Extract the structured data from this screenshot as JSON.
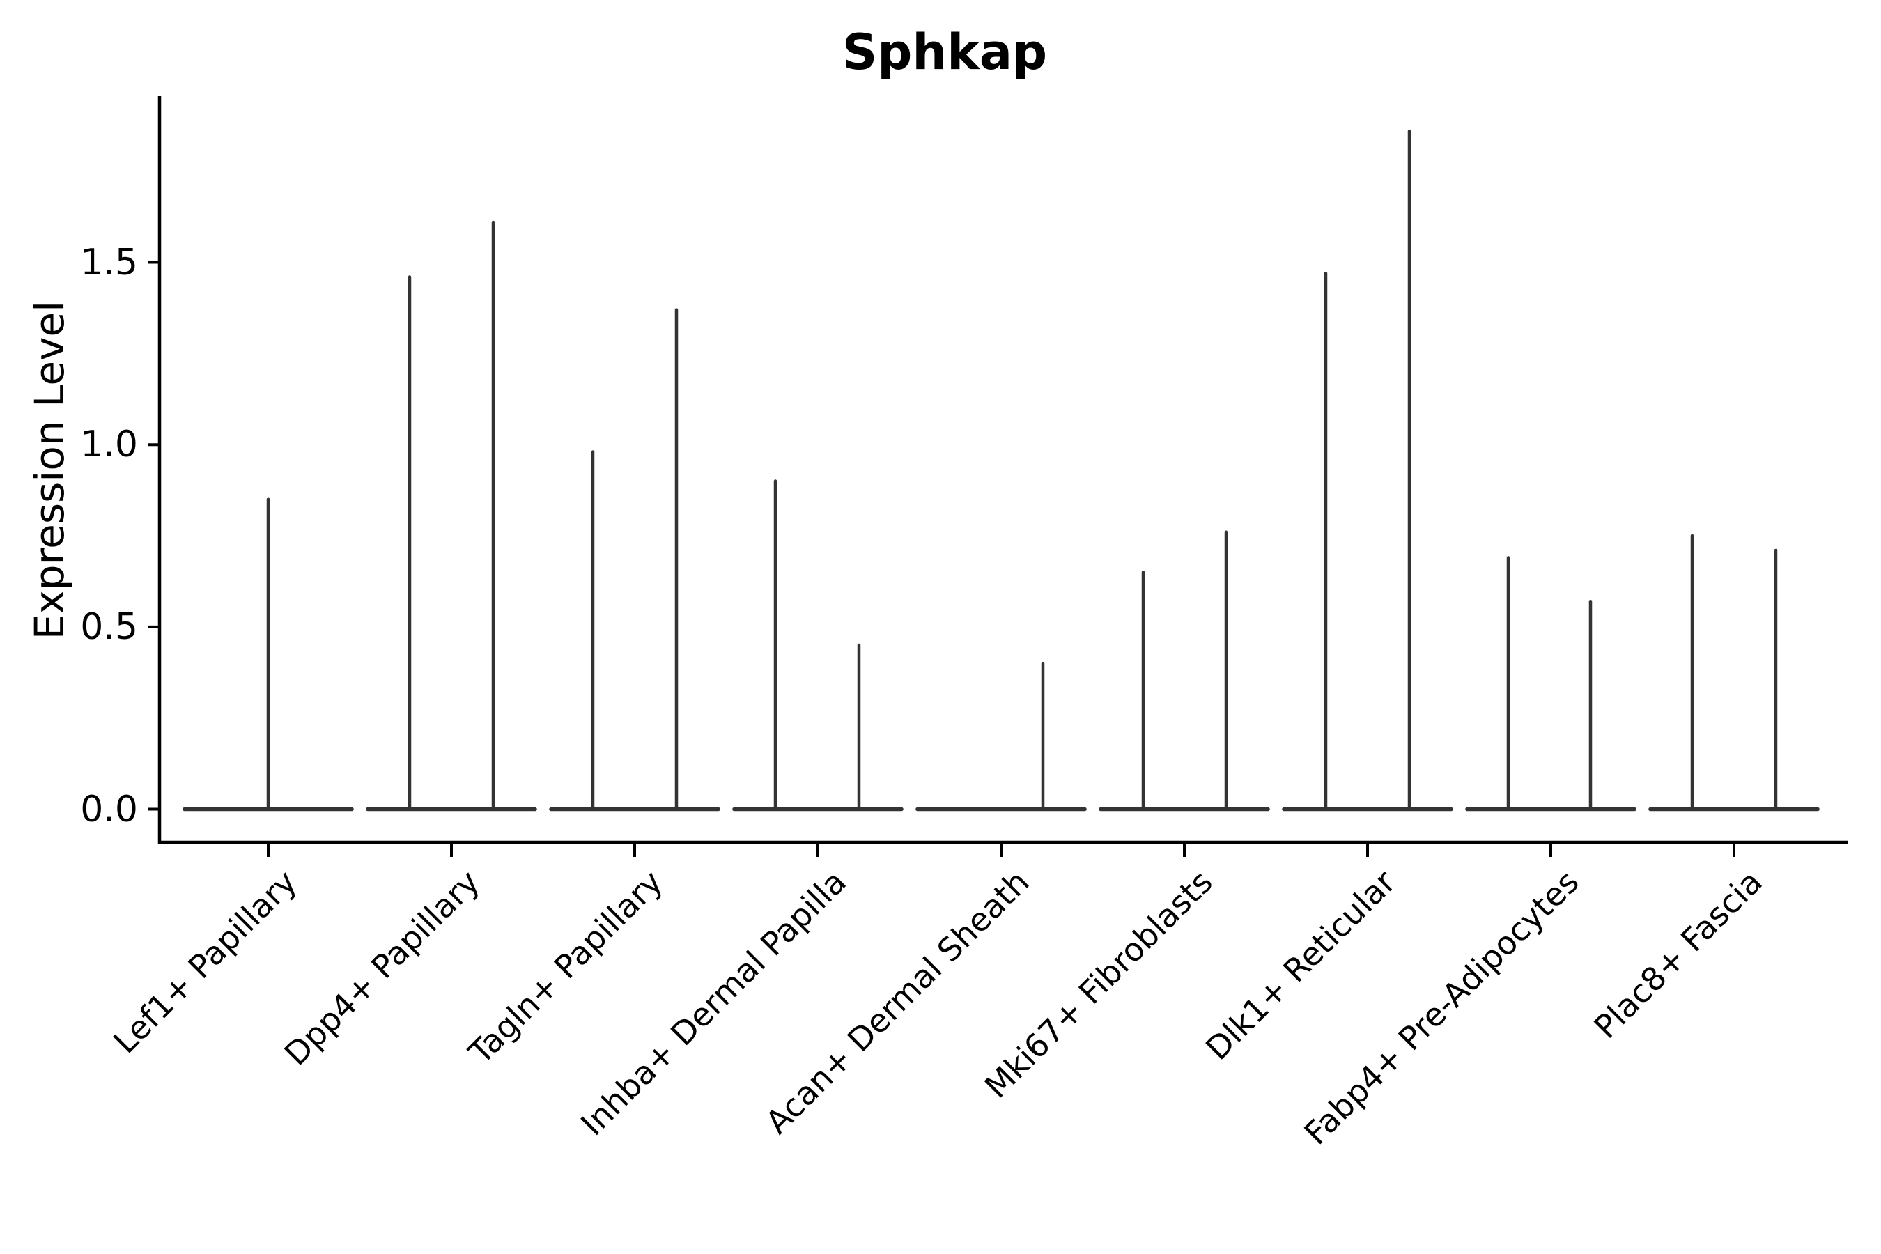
{
  "chart_data": {
    "type": "violin",
    "title": "Sphkap",
    "ylabel": "Expression Level",
    "xlabel": "",
    "legend": null,
    "grid": false,
    "ytick_labels": [
      "0.0",
      "0.5",
      "1.0",
      "1.5"
    ],
    "ytick_values": [
      0.0,
      0.5,
      1.0,
      1.5
    ],
    "ylim": [
      -0.09,
      1.95
    ],
    "violin_color": "#333333",
    "axis_color": "#000000",
    "categories": [
      "Lef1+ Papillary",
      "Dpp4+ Papillary",
      "Tagln+ Papillary",
      "Inhba+ Dermal Papilla",
      "Acan+ Dermal Sheath",
      "Mki67+ Fibroblasts",
      "Dlk1+ Reticular",
      "Fabp4+ Pre-Adipocytes",
      "Plac8+ Fascia"
    ],
    "violins": [
      {
        "label": "Lef1+ Papillary",
        "baseline_value": 0.0,
        "needles": [
          {
            "dx": 0,
            "value": 0.85
          }
        ]
      },
      {
        "label": "Dpp4+ Papillary",
        "baseline_value": 0.0,
        "needles": [
          {
            "dx": -60,
            "value": 1.46
          },
          {
            "dx": 60,
            "value": 1.61
          }
        ]
      },
      {
        "label": "Tagln+ Papillary",
        "baseline_value": 0.0,
        "needles": [
          {
            "dx": -60,
            "value": 0.98
          },
          {
            "dx": 60,
            "value": 1.37
          }
        ]
      },
      {
        "label": "Inhba+ Dermal Papilla",
        "baseline_value": 0.0,
        "needles": [
          {
            "dx": -61,
            "value": 0.9
          },
          {
            "dx": 59,
            "value": 0.45
          }
        ]
      },
      {
        "label": "Acan+ Dermal Sheath",
        "baseline_value": 0.0,
        "needles": [
          {
            "dx": 60,
            "value": 0.4
          }
        ]
      },
      {
        "label": "Mki67+ Fibroblasts",
        "baseline_value": 0.0,
        "needles": [
          {
            "dx": -59,
            "value": 0.65
          },
          {
            "dx": 60,
            "value": 0.76
          }
        ]
      },
      {
        "label": "Dlk1+ Reticular",
        "baseline_value": 0.0,
        "needles": [
          {
            "dx": -60,
            "value": 1.47
          },
          {
            "dx": 60,
            "value": 1.86
          }
        ]
      },
      {
        "label": "Fabp4+ Pre-Adipocytes",
        "baseline_value": 0.0,
        "needles": [
          {
            "dx": -61,
            "value": 0.69
          },
          {
            "dx": 57,
            "value": 0.57
          }
        ]
      },
      {
        "label": "Plac8+ Fascia",
        "baseline_value": 0.0,
        "needles": [
          {
            "dx": -60,
            "value": 0.75
          },
          {
            "dx": 60,
            "value": 0.71
          }
        ]
      }
    ]
  }
}
